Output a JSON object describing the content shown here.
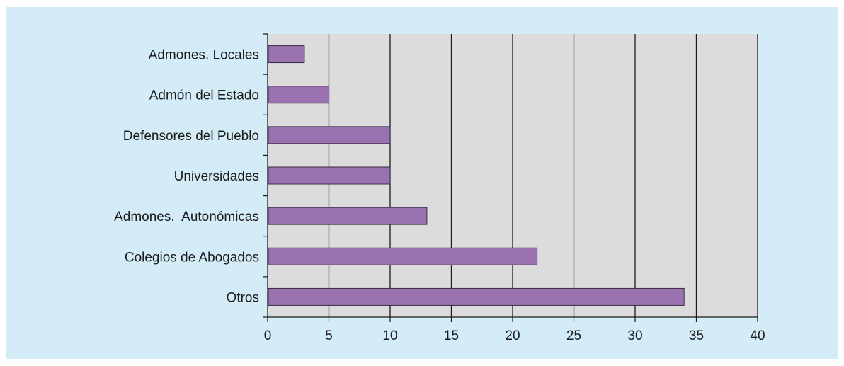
{
  "chart_data": {
    "type": "bar",
    "orientation": "horizontal",
    "categories": [
      "Admones. Locales",
      "Admón del Estado",
      "Defensores del Pueblo",
      "Universidades",
      "Admones.  Autonómicas",
      "Colegios de Abogados",
      "Otros"
    ],
    "values": [
      3,
      5,
      10,
      10,
      13,
      22,
      34
    ],
    "xlim": [
      0,
      40
    ],
    "xticks": [
      "0",
      "5",
      "10",
      "15",
      "20",
      "25",
      "30",
      "35",
      "40"
    ],
    "grid": "vertical",
    "legend": "none",
    "colors": {
      "bar": "#9b72b0",
      "bar_stroke": "#3a2a45",
      "plot_background": "#dcdcdc",
      "panel_background": "#d4ecf7",
      "grid": "#1a1a1a"
    }
  }
}
